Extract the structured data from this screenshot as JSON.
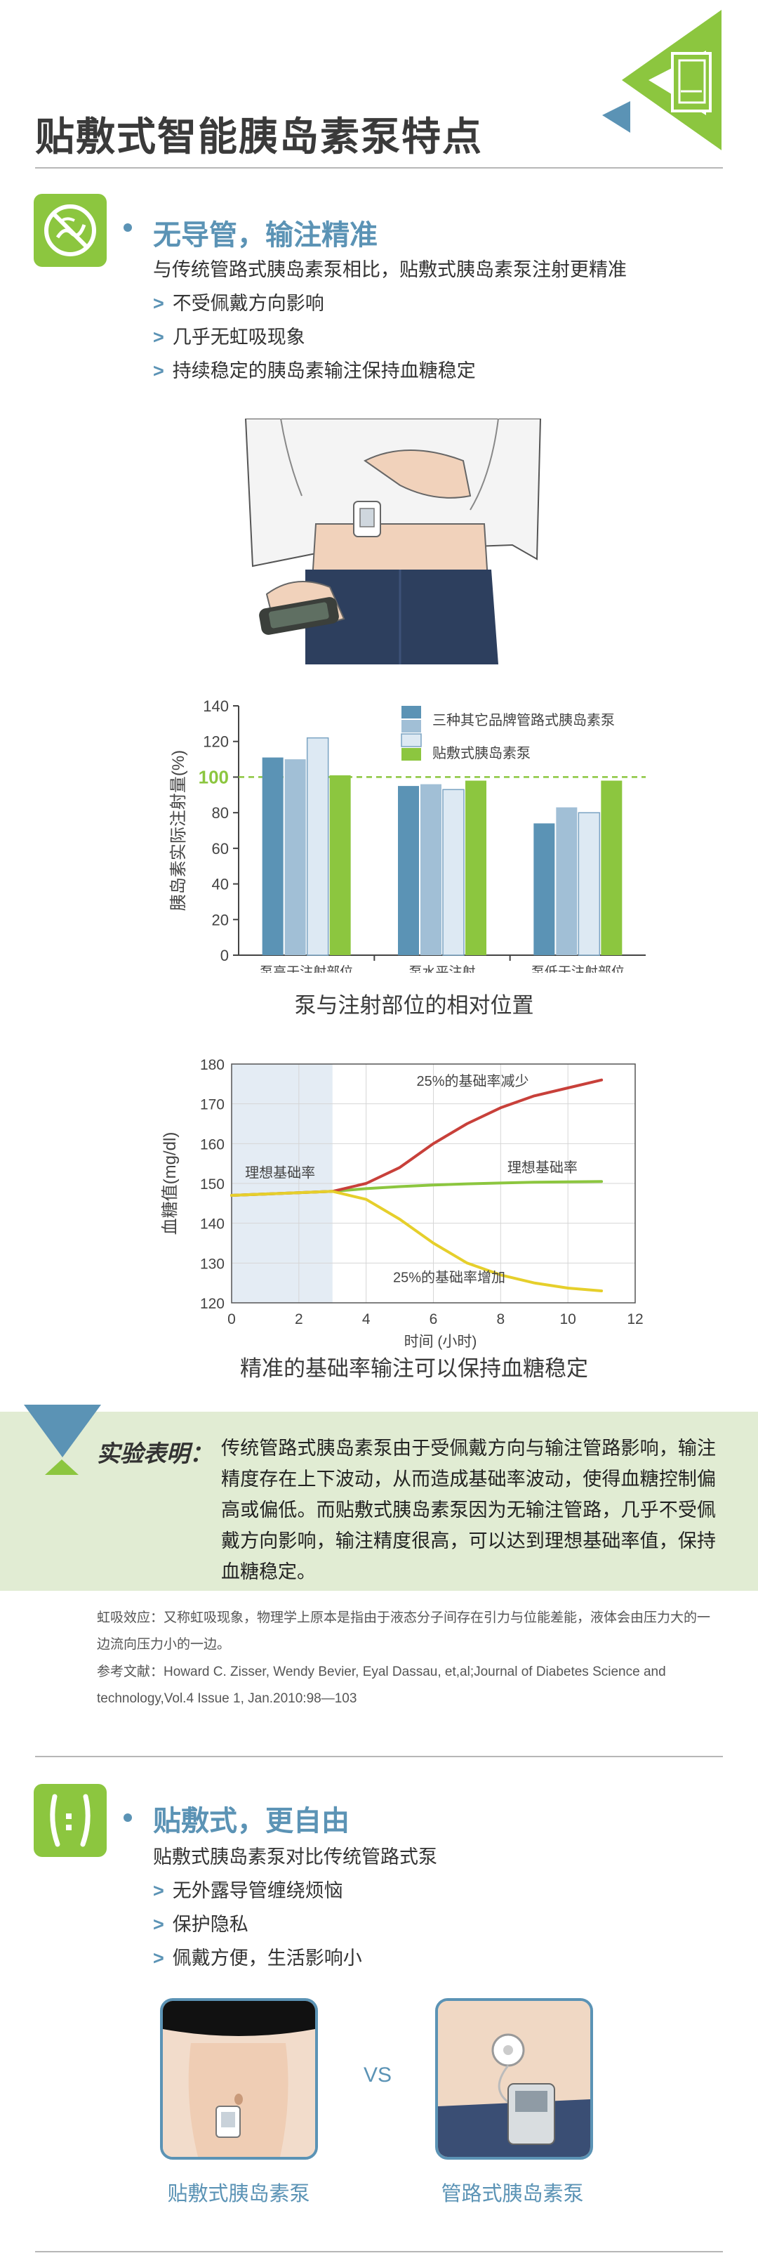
{
  "header": {
    "title": "贴敷式智能胰岛素泵特点"
  },
  "section1": {
    "icon": "no-tube-icon",
    "title": "无导管，输注精准",
    "desc": "与传统管路式胰岛素泵相比，贴敷式胰岛素泵注射更精准",
    "arrow": ">",
    "items": [
      "不受佩戴方向影响",
      "几乎无虹吸现象",
      "持续稳定的胰岛素输注保持血糖稳定"
    ]
  },
  "chart_data": [
    {
      "type": "bar",
      "title": "",
      "xlabel": "泵与注射部位的相对位置",
      "ylabel": "胰岛素实际注射量(%)",
      "ylim": [
        0,
        140
      ],
      "yticks": [
        0,
        20,
        40,
        60,
        80,
        100,
        120,
        140
      ],
      "reference_line": {
        "value": 100,
        "label": "100",
        "style": "dashed",
        "color": "#8cc63f"
      },
      "categories": [
        "泵高于注射部位",
        "泵水平注射",
        "泵低于注射部位"
      ],
      "series": [
        {
          "name": "三种其它品牌管路式胰岛素泵",
          "color": "#5b93b5",
          "values": [
            111,
            95,
            74
          ]
        },
        {
          "name": "",
          "color": "#a1bfd6",
          "values": [
            110,
            96,
            83
          ]
        },
        {
          "name": "",
          "color": "#dde9f3",
          "values": [
            122,
            93,
            80
          ]
        },
        {
          "name": "贴敷式胰岛素泵",
          "color": "#8cc63f",
          "values": [
            101,
            98,
            98
          ]
        }
      ],
      "legend_position": "top-right",
      "grid": false
    },
    {
      "type": "line",
      "title": "",
      "caption": "精准的基础率输注可以保持血糖稳定",
      "xlabel": "时间 (小时)",
      "ylabel": "血糖值(mg/dl)",
      "xlim": [
        0,
        12
      ],
      "ylim": [
        120,
        180
      ],
      "xticks": [
        0,
        2,
        4,
        6,
        8,
        10,
        12
      ],
      "yticks": [
        120,
        130,
        140,
        150,
        160,
        170,
        180
      ],
      "shaded_region": {
        "x": [
          0,
          3
        ],
        "label": "理想基础率"
      },
      "series": [
        {
          "name": "25%的基础率减少",
          "color": "#c8403a",
          "x": [
            0,
            3,
            4,
            5,
            6,
            7,
            8,
            9,
            10,
            11
          ],
          "y": [
            147,
            148,
            150,
            154,
            160,
            165,
            169,
            172,
            174,
            176
          ]
        },
        {
          "name": "理想基础率",
          "color": "#8cc63f",
          "x": [
            0,
            3,
            4,
            5,
            6,
            7,
            8,
            9,
            10,
            11
          ],
          "y": [
            147,
            148,
            148.7,
            149.2,
            149.6,
            149.9,
            150.1,
            150.3,
            150.4,
            150.5
          ]
        },
        {
          "name": "25%的基础率增加",
          "color": "#e6cf2b",
          "x": [
            0,
            3,
            4,
            5,
            6,
            7,
            8,
            9,
            10,
            11
          ],
          "y": [
            147,
            148,
            146,
            141,
            135,
            130,
            127,
            125,
            123.7,
            123
          ]
        }
      ],
      "grid": true
    }
  ],
  "note": {
    "label": "实验表明：",
    "text": "传统管路式胰岛素泵由于受佩戴方向与输注管路影响，输注精度存在上下波动，从而造成基础率波动，使得血糖控制偏高或偏低。而贴敷式胰岛素泵因为无输注管路，几乎不受佩戴方向影响，输注精度很高，可以达到理想基础率值，保持血糖稳定。"
  },
  "footnotes": {
    "siphon": "虹吸效应：又称虹吸现象，物理学上原本是指由于液态分子间存在引力与位能差能，液体会由压力大的一边流向压力小的一边。",
    "reference": "参考文献：Howard C. Zisser, Wendy Bevier, Eyal Dassau, et,al;Journal of Diabetes Science and technology,Vol.4 Issue 1, Jan.2010:98—103"
  },
  "section2": {
    "icon": "body-patch-icon",
    "title": "贴敷式，更自由",
    "desc": "贴敷式胰岛素泵对比传统管路式泵",
    "arrow": ">",
    "items": [
      "无外露导管缠绕烦恼",
      "保护隐私",
      "佩戴方便，生活影响小"
    ],
    "compare": {
      "left": "贴敷式胰岛素泵",
      "vs": "VS",
      "right": "管路式胰岛素泵"
    }
  },
  "colors": {
    "accent_green": "#8cc63f",
    "accent_blue": "#5b93b5",
    "band": "#e1ecd3"
  }
}
